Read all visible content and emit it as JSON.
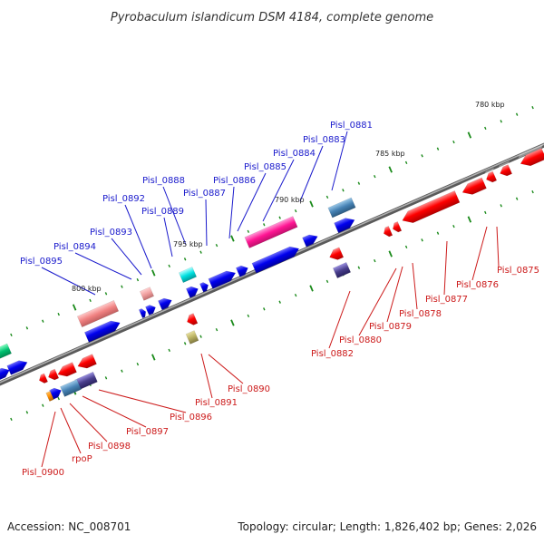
{
  "title": "Pyrobaculum islandicum DSM 4184, complete genome",
  "footer": {
    "accession": "Accession: NC_008701",
    "summary": "Topology: circular; Length: 1,826,402 bp; Genes: 2,026"
  },
  "scale_labels": [
    "780 kbp",
    "785 kbp",
    "790 kbp",
    "795 kbp",
    "800 kbp"
  ],
  "colors": {
    "forward_label": "#1a1acc",
    "reverse_label": "#cc1a1a",
    "backbone": "#808080",
    "tick": "#1a8a1a"
  },
  "forward_genes": [
    "Pisl_0881",
    "Pisl_0883",
    "Pisl_0884",
    "Pisl_0885",
    "Pisl_0886",
    "Pisl_0887",
    "Pisl_0888",
    "Pisl_0889",
    "Pisl_0892",
    "Pisl_0893",
    "Pisl_0894",
    "Pisl_0895"
  ],
  "reverse_genes": [
    "Pisl_0875",
    "Pisl_0876",
    "Pisl_0877",
    "Pisl_0878",
    "Pisl_0879",
    "Pisl_0880",
    "Pisl_0882",
    "Pisl_0890",
    "Pisl_0891",
    "Pisl_0896",
    "Pisl_0897",
    "Pisl_0898",
    "rpoP",
    "Pisl_0900"
  ]
}
